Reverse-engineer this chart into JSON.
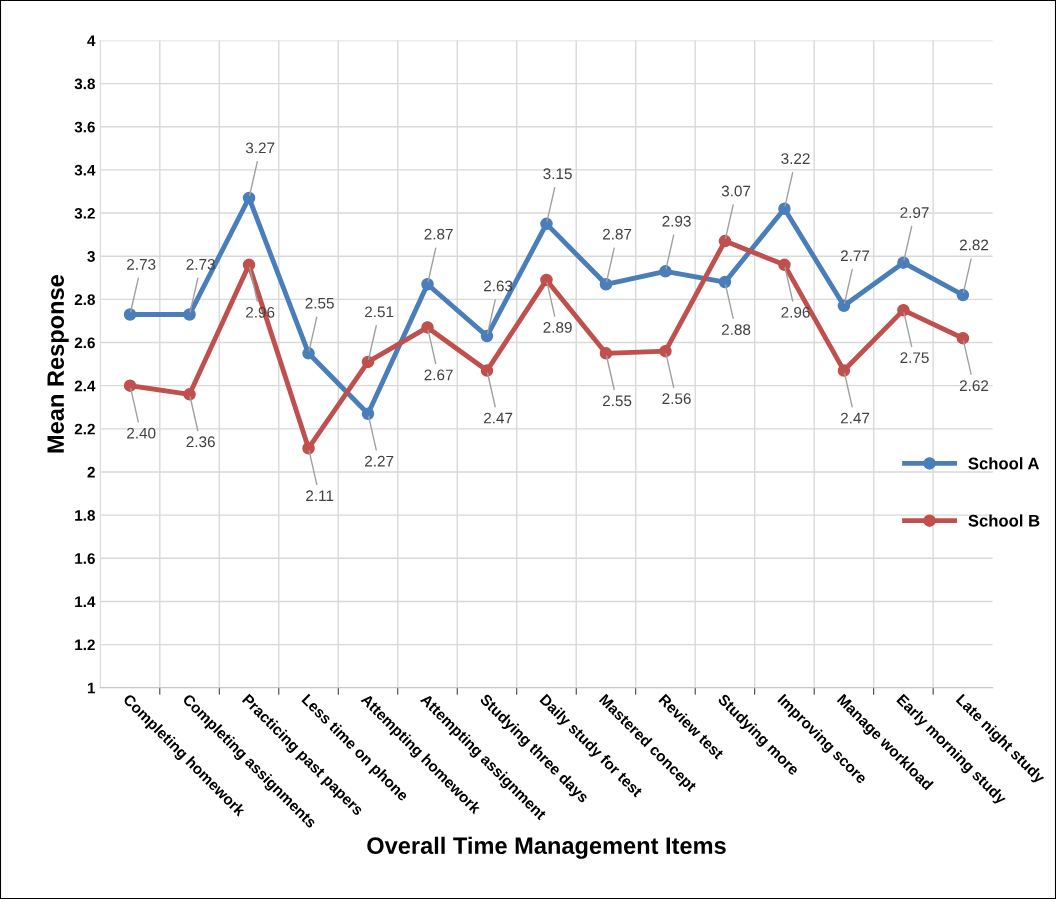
{
  "chart_data": {
    "type": "line",
    "xlabel": "Overall Time Management Items",
    "ylabel": "Mean Response",
    "categories": [
      "Completing homework",
      "Completing assignments",
      "Practicing past papers",
      "Less time on phone",
      "Attempting homework",
      "Attempting assignment",
      "Studying three days",
      "Daily study for test",
      "Mastered concept",
      "Review test",
      "Studying more",
      "Improving score",
      "Manage workload",
      "Early morning study",
      "Late night study"
    ],
    "series": [
      {
        "name": "School A",
        "color": "#4a7ebb",
        "values": [
          2.73,
          2.73,
          3.27,
          2.55,
          2.27,
          2.87,
          2.63,
          3.15,
          2.87,
          2.93,
          2.88,
          3.22,
          2.77,
          2.97,
          2.82
        ],
        "value_labels": [
          "2.73",
          "2.73",
          "3.27",
          "2.55",
          "2.27",
          "2.87",
          "2.63",
          "3.15",
          "2.87",
          "2.93",
          "2.88",
          "3.22",
          "2.77",
          "2.97",
          "2.82"
        ]
      },
      {
        "name": "School B",
        "color": "#c0504d",
        "values": [
          2.4,
          2.36,
          2.96,
          2.11,
          2.51,
          2.67,
          2.47,
          2.89,
          2.55,
          2.56,
          3.07,
          2.96,
          2.47,
          2.75,
          2.62
        ],
        "value_labels": [
          "2.40",
          "2.36",
          "2.96",
          "2.11",
          "2.51",
          "2.67",
          "2.47",
          "2.89",
          "2.55",
          "2.56",
          "3.07",
          "2.96",
          "2.47",
          "2.75",
          "2.62"
        ]
      }
    ],
    "ylim": [
      1,
      4
    ],
    "yticks": [
      1,
      1.2,
      1.4,
      1.6,
      1.8,
      2,
      2.2,
      2.4,
      2.6,
      2.8,
      3,
      3.2,
      3.4,
      3.6,
      3.8,
      4
    ],
    "grid": true,
    "legend": "right",
    "marker": "circle",
    "line_style": "solid"
  }
}
